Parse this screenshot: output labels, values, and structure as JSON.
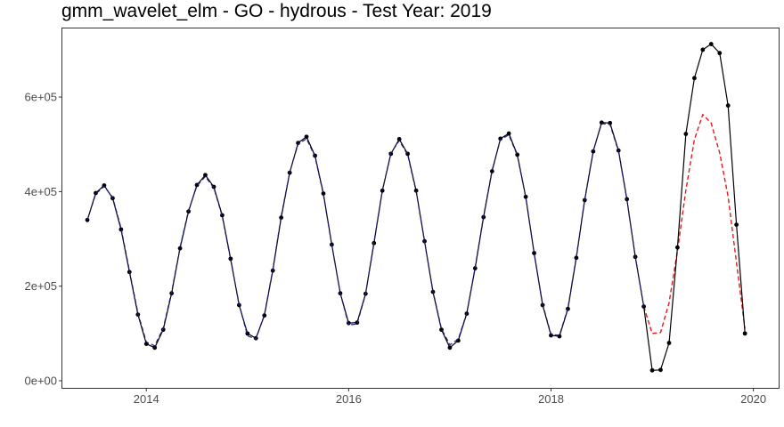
{
  "chart_data": {
    "type": "line",
    "title": "gmm_wavelet_elm - GO - hydrous - Test Year: 2019",
    "xlabel": "",
    "ylabel": "",
    "xlim": [
      2013.17,
      2020.25
    ],
    "ylim": [
      -15000,
      745000
    ],
    "x_ticks": [
      2014,
      2016,
      2018,
      2020
    ],
    "x_tick_labels": [
      "2014",
      "2016",
      "2018",
      "2020"
    ],
    "y_ticks": [
      0,
      200000,
      400000,
      600000
    ],
    "y_tick_labels": [
      "0e+00",
      "2e+05",
      "4e+05",
      "6e+05"
    ],
    "grid": false,
    "legend": "none",
    "colors": {
      "actual": "#000000",
      "fitted": "#1a1a7a",
      "forecast": "#e8191a"
    },
    "series": [
      {
        "role": "actual",
        "style": "solid-with-points",
        "x": [
          2013.417,
          2013.5,
          2013.583,
          2013.667,
          2013.75,
          2013.833,
          2013.917,
          2014.0,
          2014.083,
          2014.167,
          2014.25,
          2014.333,
          2014.417,
          2014.5,
          2014.583,
          2014.667,
          2014.75,
          2014.833,
          2014.917,
          2015.0,
          2015.083,
          2015.167,
          2015.25,
          2015.333,
          2015.417,
          2015.5,
          2015.583,
          2015.667,
          2015.75,
          2015.833,
          2015.917,
          2016.0,
          2016.083,
          2016.167,
          2016.25,
          2016.333,
          2016.417,
          2016.5,
          2016.583,
          2016.667,
          2016.75,
          2016.833,
          2016.917,
          2017.0,
          2017.083,
          2017.167,
          2017.25,
          2017.333,
          2017.417,
          2017.5,
          2017.583,
          2017.667,
          2017.75,
          2017.833,
          2017.917,
          2018.0,
          2018.083,
          2018.167,
          2018.25,
          2018.333,
          2018.417,
          2018.5,
          2018.583,
          2018.667,
          2018.75,
          2018.833,
          2018.917,
          2019.0,
          2019.083,
          2019.167,
          2019.25,
          2019.333,
          2019.417,
          2019.5,
          2019.583,
          2019.667,
          2019.75,
          2019.833,
          2019.917
        ],
        "y": [
          340000,
          397000,
          413000,
          386000,
          320000,
          230000,
          140000,
          78000,
          70000,
          108000,
          185000,
          280000,
          358000,
          414000,
          435000,
          410000,
          350000,
          258000,
          160000,
          100000,
          90000,
          138000,
          233000,
          345000,
          440000,
          503000,
          516000,
          476000,
          396000,
          288000,
          185000,
          122000,
          123000,
          184000,
          291000,
          402000,
          480000,
          511000,
          480000,
          402000,
          295000,
          188000,
          108000,
          70000,
          85000,
          142000,
          238000,
          346000,
          443000,
          512000,
          523000,
          478000,
          389000,
          270000,
          160000,
          96000,
          94000,
          152000,
          260000,
          382000,
          485000,
          546000,
          545000,
          487000,
          384000,
          262000,
          157000,
          22000,
          23000,
          80000,
          282000,
          522000,
          640000,
          700000,
          712000,
          693000,
          582000,
          330000,
          100000
        ]
      },
      {
        "role": "fitted",
        "style": "dashed",
        "x": [
          2013.417,
          2013.5,
          2013.583,
          2013.667,
          2013.75,
          2013.833,
          2013.917,
          2014.0,
          2014.083,
          2014.167,
          2014.25,
          2014.333,
          2014.417,
          2014.5,
          2014.583,
          2014.667,
          2014.75,
          2014.833,
          2014.917,
          2015.0,
          2015.083,
          2015.167,
          2015.25,
          2015.333,
          2015.417,
          2015.5,
          2015.583,
          2015.667,
          2015.75,
          2015.833,
          2015.917,
          2016.0,
          2016.083,
          2016.167,
          2016.25,
          2016.333,
          2016.417,
          2016.5,
          2016.583,
          2016.667,
          2016.75,
          2016.833,
          2016.917,
          2017.0,
          2017.083,
          2017.167,
          2017.25,
          2017.333,
          2017.417,
          2017.5,
          2017.583,
          2017.667,
          2017.75,
          2017.833,
          2017.917,
          2018.0,
          2018.083,
          2018.167,
          2018.25,
          2018.333,
          2018.417,
          2018.5,
          2018.583,
          2018.667,
          2018.75,
          2018.833,
          2018.917
        ],
        "y": [
          340000,
          395000,
          411000,
          388000,
          323000,
          233000,
          143000,
          82000,
          74000,
          111000,
          188000,
          282000,
          360000,
          412000,
          432000,
          408000,
          348000,
          256000,
          162000,
          95000,
          88000,
          140000,
          235000,
          348000,
          441000,
          500000,
          512000,
          474000,
          394000,
          287000,
          185000,
          118000,
          120000,
          183000,
          293000,
          403000,
          481000,
          508000,
          478000,
          400000,
          294000,
          190000,
          110000,
          76000,
          88000,
          143000,
          240000,
          348000,
          445000,
          510000,
          520000,
          476000,
          388000,
          270000,
          162000,
          98000,
          96000,
          154000,
          262000,
          384000,
          486000,
          544000,
          542000,
          485000,
          383000,
          262000,
          157000
        ]
      },
      {
        "role": "forecast",
        "style": "dashed",
        "x": [
          2018.917,
          2019.0,
          2019.083,
          2019.167,
          2019.25,
          2019.333,
          2019.417,
          2019.5,
          2019.583,
          2019.667,
          2019.75,
          2019.833,
          2019.917
        ],
        "y": [
          157000,
          100000,
          102000,
          165000,
          275000,
          403000,
          510000,
          563000,
          545000,
          482000,
          390000,
          250000,
          110000
        ]
      }
    ]
  }
}
